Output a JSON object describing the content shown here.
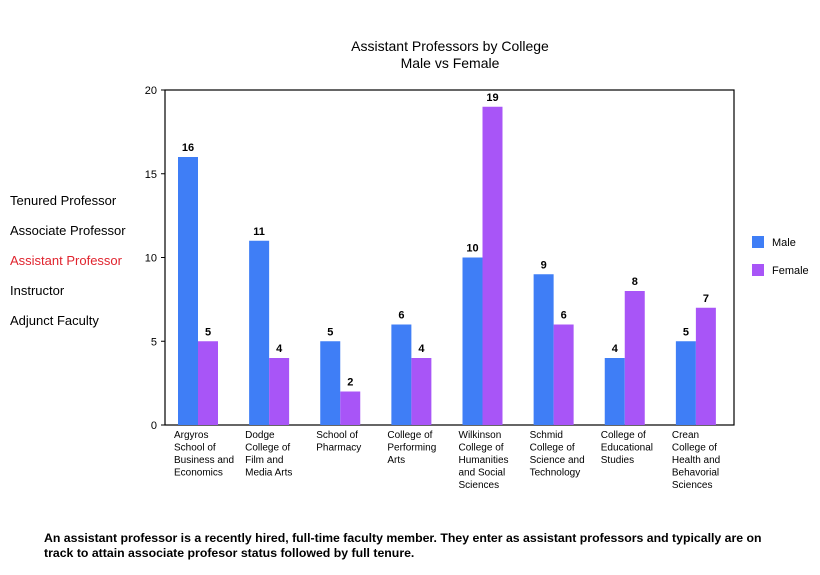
{
  "side_menu": {
    "items": [
      {
        "label": "Tenured Professor",
        "active": false
      },
      {
        "label": "Associate Professor",
        "active": false
      },
      {
        "label": "Assistant Professor",
        "active": true
      },
      {
        "label": "Instructor",
        "active": false
      },
      {
        "label": "Adjunct Faculty",
        "active": false
      }
    ]
  },
  "footnote": "An assistant professor is a recently hired, full-time faculty member. They enter as assistant professors and typically are on track to attain associate profesor status followed by full tenure.",
  "chart_data": {
    "type": "bar",
    "title": "Assistant Professors by College",
    "subtitle": "Male vs Female",
    "xlabel": "",
    "ylabel": "",
    "ylim": [
      0,
      20
    ],
    "yticks": [
      0,
      5,
      10,
      15,
      20
    ],
    "grid": false,
    "legend_position": "right",
    "categories": [
      [
        "Argyros",
        "School of",
        "Business and",
        "Economics"
      ],
      [
        "Dodge",
        "College of",
        "Film and",
        "Media Arts"
      ],
      [
        "School of",
        "Pharmacy"
      ],
      [
        "College of",
        "Performing",
        "Arts"
      ],
      [
        "Wilkinson",
        "College of",
        "Humanities",
        "and Social",
        "Sciences"
      ],
      [
        "Schmid",
        "College of",
        "Science and",
        "Technology"
      ],
      [
        "College of",
        "Educational",
        "Studies"
      ],
      [
        "Crean",
        "College of",
        "Health and",
        "Behavorial",
        "Sciences"
      ]
    ],
    "series": [
      {
        "name": "Male",
        "color": "#3f7ef6",
        "values": [
          16,
          11,
          5,
          6,
          10,
          9,
          4,
          5
        ]
      },
      {
        "name": "Female",
        "color": "#a855f7",
        "values": [
          5,
          4,
          2,
          4,
          19,
          6,
          8,
          7
        ]
      }
    ]
  }
}
